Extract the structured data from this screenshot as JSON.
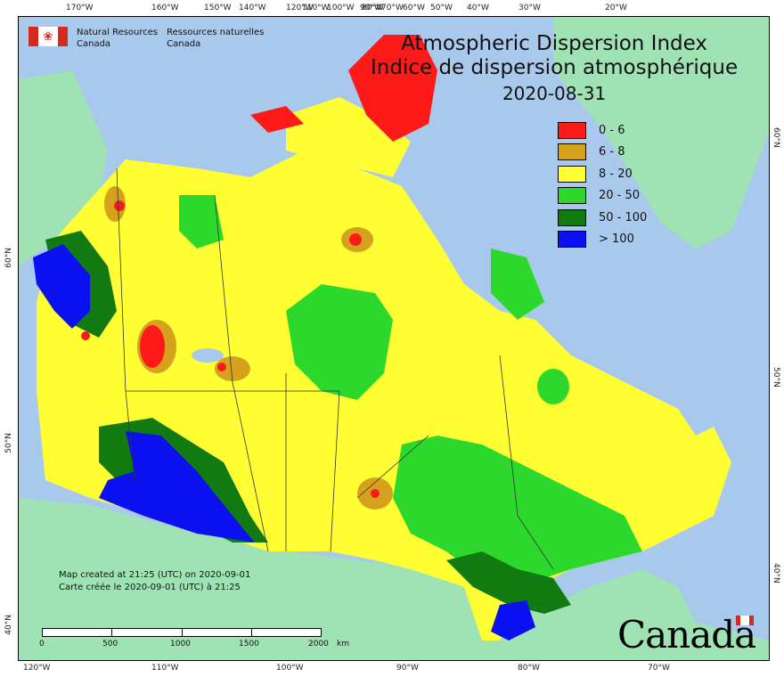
{
  "title": {
    "english": "Atmospheric Dispersion Index",
    "french": "Indice de dispersion atmosphérique",
    "date": "2020-08-31"
  },
  "agency": {
    "name_en_line1": "Natural Resources",
    "name_en_line2": "Canada",
    "name_fr_line1": "Ressources naturelles",
    "name_fr_line2": "Canada"
  },
  "legend": {
    "items": [
      {
        "label": "0 - 6",
        "color": "#ff1a1a"
      },
      {
        "label": "6 - 8",
        "color": "#d6a21e"
      },
      {
        "label": "8 - 20",
        "color": "#ffff33"
      },
      {
        "label": "20 - 50",
        "color": "#2dd82d"
      },
      {
        "label": "50 - 100",
        "color": "#117a11"
      },
      {
        "label": "> 100",
        "color": "#0b10f0"
      }
    ]
  },
  "credit": {
    "line_en": "Map created at 21:25 (UTC) on 2020-09-01",
    "line_fr": "Carte créée le 2020-09-01 (UTC) à 21:25"
  },
  "scale": {
    "ticks": [
      "0",
      "500",
      "1000",
      "1500",
      "2000"
    ],
    "unit": "km"
  },
  "graticule": {
    "top_labels": [
      "170°W",
      "160°W",
      "150°W",
      "140°W",
      "120°W",
      "110°W",
      "100°W",
      "90°W",
      "80°W",
      "70°W",
      "60°W",
      "50°W",
      "40°W",
      "30°W",
      "20°W"
    ],
    "bottom_labels": [
      "120°W",
      "110°W",
      "100°W",
      "90°W",
      "80°W",
      "70°W"
    ],
    "left_labels": [
      "60°N",
      "50°N",
      "40°N"
    ],
    "right_labels": [
      "60°N",
      "50°N",
      "40°N"
    ]
  },
  "wordmark": "Canada",
  "colors": {
    "water": "#a9c9ec",
    "land_outside": "#9fe3b5"
  }
}
